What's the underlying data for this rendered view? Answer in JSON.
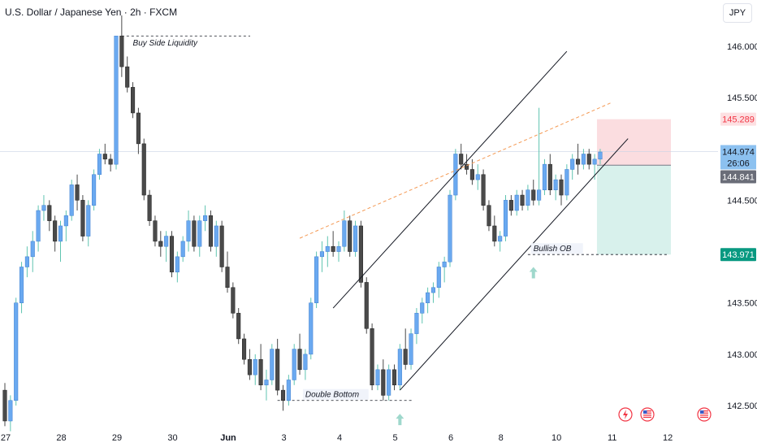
{
  "header": {
    "title": "U.S. Dollar / Japanese Yen · 2h · FXCM",
    "currency_button": "JPY"
  },
  "price_labels": {
    "target": "145.289",
    "current": "144.974",
    "countdown": "26:06",
    "entry": "144.841",
    "stop": "143.971"
  },
  "annotations": {
    "buy_side": "Buy Side Liquidity",
    "double_bottom": "Double Bottom",
    "bullish_ob": "Bullish OB"
  },
  "colors": {
    "up": "#6aa9f0",
    "down": "#4a4a4a",
    "wick_up": "#5fc4b0",
    "target_zone": "#fbdde0",
    "stop_zone": "#d8f1ec",
    "label_red": "#f23645",
    "label_blue": "#8cc1f0",
    "label_gray": "#6a6d78",
    "label_green": "#089981",
    "trendline_dashed": "#f49a55",
    "arrow": "#9fd8cc"
  },
  "chart_data": {
    "type": "candlestick",
    "symbol": "USDJPY",
    "timeframe": "2h",
    "y_ticks": [
      142.5,
      143.0,
      143.5,
      144.0,
      144.5,
      145.0,
      145.5,
      146.0
    ],
    "y_tick_labels": [
      "142.500",
      "143.000",
      "143.500",
      "",
      "144.500",
      "",
      "145.500",
      "146.000"
    ],
    "ylim": [
      142.35,
      146.45
    ],
    "x_ticks": [
      {
        "label": "27",
        "index": 0
      },
      {
        "label": "28",
        "index": 10
      },
      {
        "label": "29",
        "index": 20
      },
      {
        "label": "30",
        "index": 30
      },
      {
        "label": "Jun",
        "index": 40
      },
      {
        "label": "3",
        "index": 50
      },
      {
        "label": "4",
        "index": 60
      },
      {
        "label": "5",
        "index": 70
      },
      {
        "label": "6",
        "index": 80
      },
      {
        "label": "8",
        "index": 89
      },
      {
        "label": "10",
        "index": 99
      },
      {
        "label": "11",
        "index": 109
      },
      {
        "label": "12",
        "index": 119
      }
    ],
    "candles": [
      [
        142.65,
        142.72,
        142.3,
        142.35
      ],
      [
        142.35,
        142.6,
        142.25,
        142.55
      ],
      [
        142.55,
        143.55,
        142.5,
        143.5
      ],
      [
        143.5,
        143.9,
        143.4,
        143.85
      ],
      [
        143.85,
        144.05,
        143.75,
        143.95
      ],
      [
        143.95,
        144.2,
        143.8,
        144.1
      ],
      [
        144.1,
        144.45,
        144.0,
        144.4
      ],
      [
        144.4,
        144.55,
        144.3,
        144.45
      ],
      [
        144.45,
        144.5,
        144.2,
        144.3
      ],
      [
        144.3,
        144.35,
        144.0,
        144.1
      ],
      [
        144.1,
        144.3,
        143.9,
        144.25
      ],
      [
        144.25,
        144.4,
        144.1,
        144.35
      ],
      [
        144.35,
        144.7,
        144.3,
        144.65
      ],
      [
        144.65,
        144.75,
        144.4,
        144.5
      ],
      [
        144.5,
        144.55,
        144.1,
        144.15
      ],
      [
        144.15,
        144.5,
        144.05,
        144.45
      ],
      [
        144.45,
        144.8,
        144.4,
        144.75
      ],
      [
        144.75,
        145.0,
        144.7,
        144.95
      ],
      [
        144.95,
        145.05,
        144.85,
        144.9
      ],
      [
        144.9,
        144.95,
        144.78,
        144.85
      ],
      [
        144.85,
        146.1,
        144.8,
        146.1
      ],
      [
        146.1,
        146.3,
        145.7,
        145.8
      ],
      [
        145.8,
        145.9,
        145.55,
        145.6
      ],
      [
        145.6,
        145.65,
        145.3,
        145.35
      ],
      [
        145.35,
        145.4,
        144.95,
        145.05
      ],
      [
        145.05,
        145.1,
        144.5,
        144.55
      ],
      [
        144.55,
        144.6,
        144.25,
        144.3
      ],
      [
        144.3,
        144.35,
        144.05,
        144.1
      ],
      [
        144.1,
        144.2,
        143.95,
        144.05
      ],
      [
        144.05,
        144.2,
        143.9,
        144.15
      ],
      [
        144.15,
        144.2,
        143.75,
        143.8
      ],
      [
        143.8,
        144.0,
        143.7,
        143.95
      ],
      [
        143.95,
        144.15,
        143.9,
        144.1
      ],
      [
        144.1,
        144.4,
        144.0,
        144.3
      ],
      [
        144.3,
        144.35,
        144.0,
        144.05
      ],
      [
        144.05,
        144.35,
        143.95,
        144.3
      ],
      [
        144.3,
        144.45,
        144.2,
        144.35
      ],
      [
        144.35,
        144.4,
        144.0,
        144.05
      ],
      [
        144.05,
        144.3,
        143.95,
        144.25
      ],
      [
        144.25,
        144.3,
        143.8,
        143.85
      ],
      [
        143.85,
        144.0,
        143.6,
        143.65
      ],
      [
        143.65,
        143.7,
        143.35,
        143.4
      ],
      [
        143.4,
        143.45,
        143.1,
        143.15
      ],
      [
        143.15,
        143.2,
        142.9,
        142.95
      ],
      [
        142.95,
        143.05,
        142.75,
        142.8
      ],
      [
        142.8,
        143.0,
        142.7,
        142.95
      ],
      [
        142.95,
        143.1,
        142.65,
        142.7
      ],
      [
        142.7,
        142.85,
        142.55,
        142.75
      ],
      [
        142.75,
        143.1,
        142.7,
        143.05
      ],
      [
        143.05,
        143.15,
        142.6,
        142.65
      ],
      [
        142.65,
        142.7,
        142.45,
        142.55
      ],
      [
        142.55,
        142.8,
        142.5,
        142.75
      ],
      [
        142.75,
        143.1,
        142.7,
        143.05
      ],
      [
        143.05,
        143.2,
        142.8,
        142.85
      ],
      [
        142.85,
        143.05,
        142.75,
        143.0
      ],
      [
        143.0,
        143.55,
        142.95,
        143.5
      ],
      [
        143.5,
        144.0,
        143.45,
        143.95
      ],
      [
        143.95,
        144.1,
        143.8,
        144.0
      ],
      [
        144.0,
        144.15,
        143.85,
        144.05
      ],
      [
        144.05,
        144.2,
        143.95,
        144.0
      ],
      [
        144.0,
        144.1,
        143.9,
        144.05
      ],
      [
        144.05,
        144.4,
        144.0,
        144.3
      ],
      [
        144.3,
        144.35,
        143.95,
        144.0
      ],
      [
        144.0,
        144.3,
        143.95,
        144.25
      ],
      [
        144.25,
        144.3,
        143.65,
        143.7
      ],
      [
        143.7,
        143.75,
        143.2,
        143.25
      ],
      [
        143.25,
        143.3,
        142.65,
        142.7
      ],
      [
        142.7,
        142.9,
        142.65,
        142.85
      ],
      [
        142.85,
        142.95,
        142.55,
        142.6
      ],
      [
        142.6,
        142.9,
        142.55,
        142.85
      ],
      [
        142.85,
        142.9,
        142.65,
        142.7
      ],
      [
        142.7,
        143.1,
        142.65,
        143.05
      ],
      [
        143.05,
        143.25,
        142.85,
        142.9
      ],
      [
        142.9,
        143.25,
        142.85,
        143.2
      ],
      [
        143.2,
        143.45,
        143.1,
        143.4
      ],
      [
        143.4,
        143.55,
        143.3,
        143.5
      ],
      [
        143.5,
        143.65,
        143.4,
        143.6
      ],
      [
        143.6,
        143.7,
        143.5,
        143.65
      ],
      [
        143.65,
        143.9,
        143.55,
        143.85
      ],
      [
        143.85,
        143.95,
        143.7,
        143.9
      ],
      [
        143.9,
        144.6,
        143.85,
        144.55
      ],
      [
        144.55,
        145.0,
        144.5,
        144.95
      ],
      [
        144.95,
        145.05,
        144.8,
        144.85
      ],
      [
        144.85,
        144.95,
        144.75,
        144.8
      ],
      [
        144.8,
        144.9,
        144.65,
        144.7
      ],
      [
        144.7,
        144.85,
        144.6,
        144.75
      ],
      [
        144.75,
        144.8,
        144.4,
        144.45
      ],
      [
        144.45,
        144.5,
        144.2,
        144.25
      ],
      [
        144.25,
        144.35,
        144.05,
        144.1
      ],
      [
        144.1,
        144.2,
        144.0,
        144.15
      ],
      [
        144.15,
        144.55,
        144.1,
        144.5
      ],
      [
        144.5,
        144.55,
        144.35,
        144.4
      ],
      [
        144.4,
        144.6,
        144.35,
        144.55
      ],
      [
        144.55,
        144.6,
        144.4,
        144.45
      ],
      [
        144.45,
        144.65,
        144.4,
        144.6
      ],
      [
        144.6,
        144.7,
        144.45,
        144.5
      ],
      [
        144.5,
        145.4,
        144.45,
        144.6
      ],
      [
        144.6,
        144.9,
        144.55,
        144.85
      ],
      [
        144.85,
        144.95,
        144.55,
        144.6
      ],
      [
        144.6,
        144.75,
        144.5,
        144.7
      ],
      [
        144.7,
        144.75,
        144.45,
        144.55
      ],
      [
        144.55,
        144.85,
        144.5,
        144.8
      ],
      [
        144.8,
        144.95,
        144.7,
        144.9
      ],
      [
        144.9,
        145.05,
        144.75,
        144.85
      ],
      [
        144.85,
        145.0,
        144.8,
        144.95
      ],
      [
        144.95,
        145.0,
        144.8,
        144.85
      ],
      [
        144.85,
        144.95,
        144.7,
        144.9
      ],
      [
        144.9,
        145.0,
        144.85,
        144.97
      ]
    ],
    "position": {
      "type": "long",
      "entry": 144.841,
      "target": 145.289,
      "stop": 143.971
    },
    "current_price": 144.974,
    "levels": [
      {
        "name": "Buy Side Liquidity",
        "price": 146.1
      },
      {
        "name": "Double Bottom",
        "price": 142.55
      },
      {
        "name": "Bullish OB",
        "price": 143.971
      }
    ],
    "grid": false
  }
}
